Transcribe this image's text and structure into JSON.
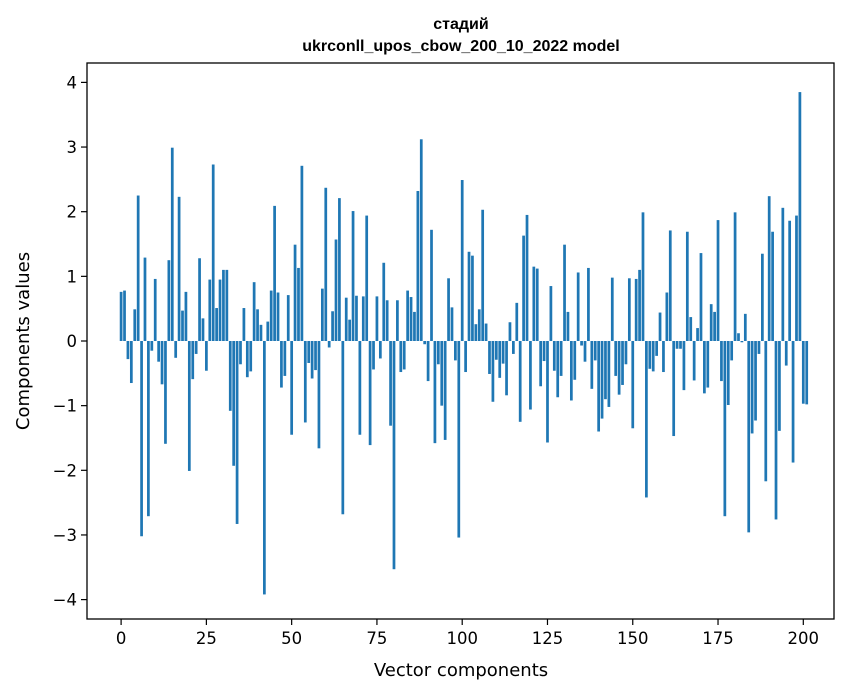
{
  "chart_data": {
    "type": "bar",
    "title": "стадий",
    "subtitle": "ukrconll_upos_cbow_200_10_2022 model",
    "xlabel": "Vector components",
    "ylabel": "Components values",
    "xlim": [
      -10,
      209
    ],
    "ylim": [
      -4.3,
      4.3
    ],
    "xticks": [
      0,
      25,
      50,
      75,
      100,
      125,
      150,
      175,
      200
    ],
    "yticks": [
      -4,
      -3,
      -2,
      -1,
      0,
      1,
      2,
      3,
      4
    ],
    "grid": false,
    "bar_color": "#1f77b4",
    "values": [
      0.76,
      0.78,
      -0.28,
      -0.65,
      0.49,
      2.25,
      -3.02,
      1.29,
      -2.71,
      -0.15,
      0.96,
      -0.32,
      -0.67,
      -1.59,
      1.25,
      2.99,
      -0.26,
      2.23,
      0.47,
      0.76,
      -2.01,
      -0.59,
      -0.2,
      1.28,
      0.35,
      -0.46,
      0.95,
      2.73,
      0.51,
      0.95,
      1.1,
      1.1,
      -1.08,
      -1.93,
      -2.83,
      -0.36,
      0.51,
      -0.56,
      -0.47,
      0.91,
      0.49,
      0.25,
      -3.92,
      0.3,
      0.78,
      2.09,
      0.75,
      -0.72,
      -0.54,
      0.71,
      -1.45,
      1.49,
      1.13,
      2.71,
      -1.26,
      -0.34,
      -0.58,
      -0.45,
      -1.66,
      0.81,
      2.37,
      -0.1,
      0.46,
      1.57,
      2.21,
      -2.68,
      0.67,
      0.33,
      2.01,
      0.7,
      -1.45,
      0.69,
      1.94,
      -1.61,
      -0.44,
      0.69,
      -0.27,
      1.21,
      0.63,
      -1.31,
      -3.53,
      0.63,
      -0.48,
      -0.44,
      0.78,
      0.68,
      0.45,
      2.32,
      3.12,
      -0.05,
      -0.62,
      1.72,
      -1.58,
      -0.36,
      -1.0,
      -1.53,
      0.97,
      0.52,
      -0.3,
      -3.04,
      2.49,
      -0.48,
      1.38,
      1.32,
      0.26,
      0.49,
      2.03,
      0.27,
      -0.51,
      -0.94,
      -0.29,
      -0.57,
      -0.35,
      -0.84,
      0.29,
      -0.2,
      0.59,
      -1.25,
      1.63,
      1.95,
      -1.06,
      1.15,
      1.12,
      -0.7,
      -0.31,
      -1.57,
      0.85,
      -0.46,
      -0.87,
      -0.54,
      1.49,
      0.45,
      -0.92,
      -0.6,
      1.06,
      -0.07,
      -0.32,
      1.13,
      -0.74,
      -0.3,
      -1.4,
      -1.2,
      -0.9,
      -1.02,
      0.98,
      -0.54,
      -0.83,
      -0.68,
      -0.36,
      0.97,
      -1.35,
      0.96,
      1.1,
      1.99,
      -2.42,
      -0.43,
      -0.47,
      -0.23,
      0.44,
      -0.48,
      0.75,
      1.71,
      -1.47,
      -0.12,
      -0.12,
      -0.76,
      1.69,
      0.37,
      -0.61,
      0.2,
      1.36,
      -0.81,
      -0.72,
      0.57,
      0.45,
      1.87,
      -0.62,
      -2.71,
      -0.99,
      -0.3,
      1.99,
      0.12,
      -0.02,
      0.42,
      -2.96,
      -1.43,
      -1.23,
      -0.2,
      1.35,
      -2.17,
      2.24,
      1.69,
      -2.76,
      -1.39,
      2.06,
      -0.38,
      1.86,
      -1.88,
      1.94,
      3.85,
      -0.97,
      -0.98
    ]
  }
}
